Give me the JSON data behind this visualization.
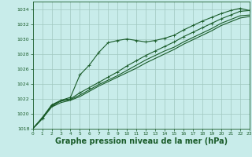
{
  "background_color": "#c8ecea",
  "plot_bg_color": "#c8ecea",
  "grid_color": "#a0c8c0",
  "line_color": "#1a5c2a",
  "xlabel": "Graphe pression niveau de la mer (hPa)",
  "xlabel_fontsize": 7.0,
  "ylim": [
    1018,
    1035
  ],
  "xlim": [
    0,
    23
  ],
  "yticks": [
    1018,
    1020,
    1022,
    1024,
    1026,
    1028,
    1030,
    1032,
    1034
  ],
  "xticks": [
    0,
    1,
    2,
    3,
    4,
    5,
    6,
    7,
    8,
    9,
    10,
    11,
    12,
    13,
    14,
    15,
    16,
    17,
    18,
    19,
    20,
    21,
    22,
    23
  ],
  "series1_x": [
    0,
    1,
    2,
    3,
    4,
    5,
    6,
    7,
    8,
    9,
    10,
    11,
    12,
    13,
    14,
    15,
    16,
    17,
    18,
    19,
    20,
    21,
    22,
    23
  ],
  "series1_y": [
    1018.0,
    1019.4,
    1021.2,
    1021.8,
    1022.2,
    1025.2,
    1026.5,
    1028.2,
    1029.5,
    1029.8,
    1030.0,
    1029.8,
    1029.6,
    1029.8,
    1030.1,
    1030.5,
    1031.2,
    1031.8,
    1032.4,
    1032.9,
    1033.4,
    1033.8,
    1034.1,
    1033.8
  ],
  "series2_x": [
    0,
    1,
    2,
    3,
    4,
    5,
    6,
    7,
    8,
    9,
    10,
    11,
    12,
    13,
    14,
    15,
    16,
    17,
    18,
    19,
    20,
    21,
    22,
    23
  ],
  "series2_y": [
    1018.0,
    1019.5,
    1021.1,
    1021.8,
    1022.0,
    1022.8,
    1023.5,
    1024.2,
    1024.9,
    1025.6,
    1026.4,
    1027.1,
    1027.8,
    1028.4,
    1029.0,
    1029.6,
    1030.3,
    1030.9,
    1031.5,
    1032.1,
    1032.7,
    1033.2,
    1033.7,
    1033.8
  ],
  "series3_x": [
    0,
    1,
    2,
    3,
    4,
    5,
    6,
    7,
    8,
    9,
    10,
    11,
    12,
    13,
    14,
    15,
    16,
    17,
    18,
    19,
    20,
    21,
    22,
    23
  ],
  "series3_y": [
    1018.0,
    1019.4,
    1021.0,
    1021.7,
    1021.9,
    1022.5,
    1023.2,
    1023.9,
    1024.5,
    1025.1,
    1025.8,
    1026.5,
    1027.2,
    1027.8,
    1028.4,
    1028.9,
    1029.6,
    1030.2,
    1030.8,
    1031.4,
    1032.1,
    1032.6,
    1033.1,
    1033.2
  ],
  "series4_x": [
    0,
    1,
    2,
    3,
    4,
    5,
    6,
    7,
    8,
    9,
    10,
    11,
    12,
    13,
    14,
    15,
    16,
    17,
    18,
    19,
    20,
    21,
    22,
    23
  ],
  "series4_y": [
    1018.0,
    1019.3,
    1020.9,
    1021.5,
    1021.8,
    1022.3,
    1023.0,
    1023.7,
    1024.3,
    1024.9,
    1025.5,
    1026.1,
    1026.8,
    1027.4,
    1028.0,
    1028.6,
    1029.3,
    1029.9,
    1030.5,
    1031.1,
    1031.8,
    1032.3,
    1032.8,
    1033.0
  ]
}
